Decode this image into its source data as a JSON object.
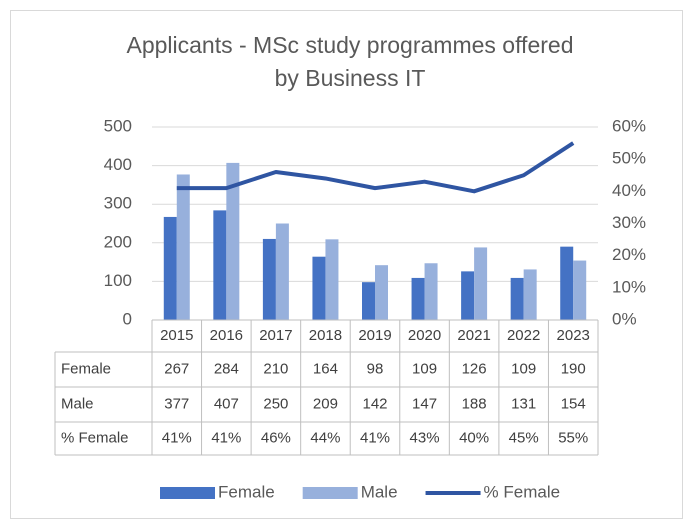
{
  "chart_data": {
    "type": "bar",
    "title": "Applicants - MSc study programmes offered",
    "subtitle": "by Business IT",
    "categories": [
      "2015",
      "2016",
      "2017",
      "2018",
      "2019",
      "2020",
      "2021",
      "2022",
      "2023"
    ],
    "series": [
      {
        "name": "Female",
        "color": "#4472c4",
        "values": [
          267,
          284,
          210,
          164,
          98,
          109,
          126,
          109,
          190
        ]
      },
      {
        "name": "Male",
        "color": "#97b0dc",
        "values": [
          377,
          407,
          250,
          209,
          142,
          147,
          188,
          131,
          154
        ]
      },
      {
        "name": "% Female",
        "type": "line",
        "axis": "y2",
        "color": "#2f55a2",
        "values": [
          41,
          41,
          46,
          44,
          41,
          43,
          40,
          45,
          55
        ],
        "value_labels": [
          "41%",
          "41%",
          "46%",
          "44%",
          "41%",
          "43%",
          "40%",
          "45%",
          "55%"
        ]
      }
    ],
    "ylim": [
      0,
      500
    ],
    "yticks": [
      0,
      100,
      200,
      300,
      400,
      500
    ],
    "y2lim": [
      0,
      60
    ],
    "y2ticks": [
      {
        "value": 0,
        "label": "0%"
      },
      {
        "value": 10,
        "label": "10%"
      },
      {
        "value": 20,
        "label": "20%"
      },
      {
        "value": 30,
        "label": "30%"
      },
      {
        "value": 40,
        "label": "40%"
      },
      {
        "value": 50,
        "label": "50%"
      },
      {
        "value": 60,
        "label": "60%"
      }
    ],
    "grid": true,
    "legend": "bottom",
    "data_table": true
  }
}
